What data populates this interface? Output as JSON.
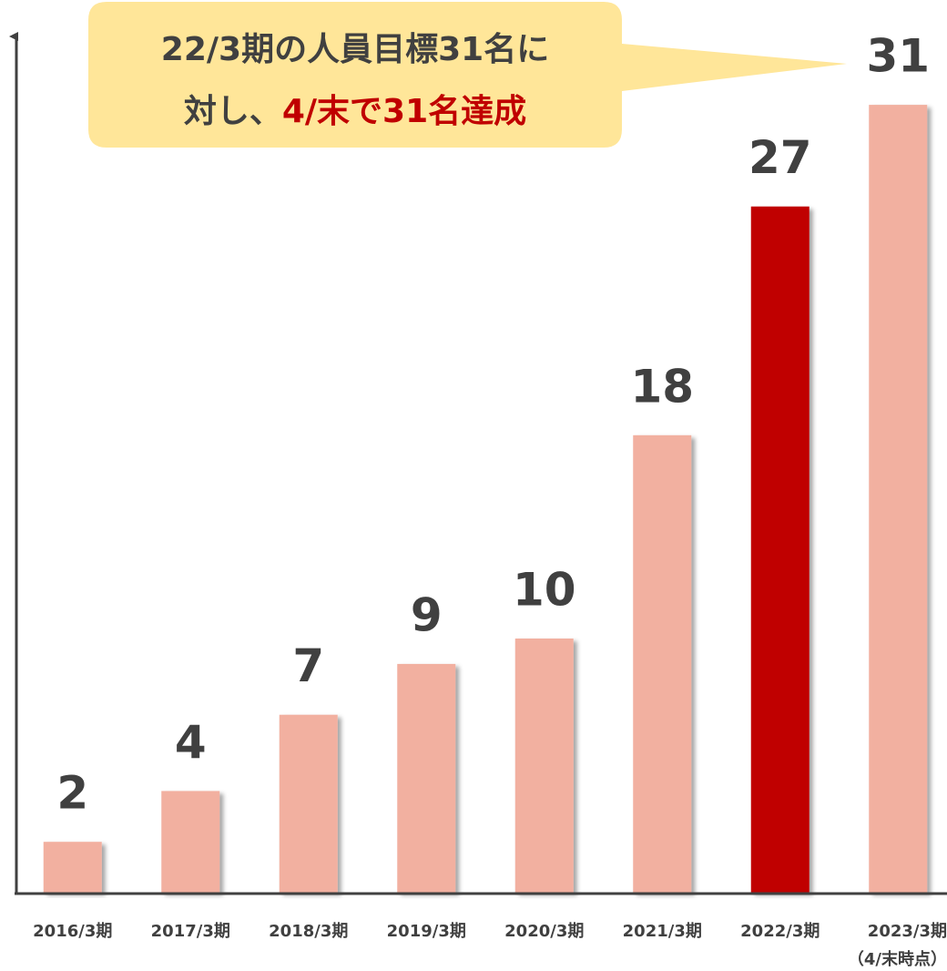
{
  "chart_data": {
    "type": "bar",
    "categories": [
      "2016/3期",
      "2017/3期",
      "2018/3期",
      "2019/3期",
      "2020/3期",
      "2021/3期",
      "2022/3期",
      "2023/3期"
    ],
    "category_note": "（4/末時点）",
    "values": [
      2,
      4,
      7,
      9,
      10,
      18,
      27,
      31
    ],
    "colors": [
      "#f2b0a0",
      "#f2b0a0",
      "#f2b0a0",
      "#f2b0a0",
      "#f2b0a0",
      "#f2b0a0",
      "#c00000",
      "#f2b0a0"
    ],
    "ylim": [
      0,
      34
    ],
    "annotation": {
      "line1": "22/3期の人員目標31名に",
      "line2_plain": "対し、",
      "line2_highlight": "4/末で31名達成",
      "color": "#ffe699",
      "highlight_color": "#c00000"
    }
  }
}
